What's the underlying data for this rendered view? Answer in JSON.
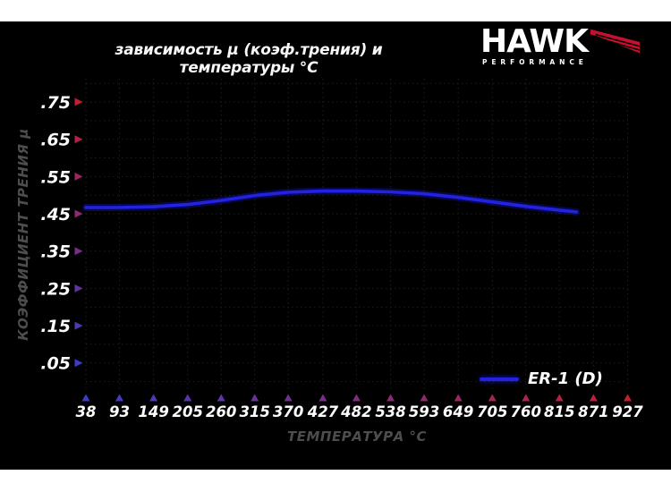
{
  "page": {
    "background": "#000000",
    "band_color": "#ffffff"
  },
  "header": {
    "title": "зависимость μ (коэф.трения) и температуры °C",
    "logo": {
      "brand": "HAWK",
      "subbrand": "PERFORMANCE",
      "wing_color": "#c8102e"
    }
  },
  "chart_data": {
    "type": "line",
    "title": "зависимость μ (коэф.трения) и температуры °C",
    "xlabel": "ТЕМПЕРАТУРА °C",
    "ylabel": "КОЭФФИЦИЕНТ ТРЕНИЯ μ",
    "x_ticks": [
      38,
      93,
      149,
      205,
      260,
      315,
      370,
      427,
      482,
      538,
      593,
      649,
      705,
      760,
      815,
      871,
      927
    ],
    "y_ticks": [
      ".05",
      ".15",
      ".25",
      ".35",
      ".45",
      ".55",
      ".65",
      ".75"
    ],
    "y_tick_values": [
      0.05,
      0.15,
      0.25,
      0.35,
      0.45,
      0.55,
      0.65,
      0.75
    ],
    "xlim": [
      38,
      927
    ],
    "ylim": [
      -0.025,
      0.8125
    ],
    "grid": "dotted",
    "legend_position": "bottom-right",
    "colors": {
      "axis_red": "#c41e33",
      "axis_blue": "#3c3cc8",
      "grid": "#1f1f1f",
      "curve": "#2222e0",
      "curve_glow": "#0e0e96"
    },
    "series": [
      {
        "name": "ER-1 (D)",
        "color": "#2222e0",
        "points": [
          [
            38,
            0.467
          ],
          [
            93,
            0.467
          ],
          [
            149,
            0.469
          ],
          [
            205,
            0.475
          ],
          [
            260,
            0.486
          ],
          [
            315,
            0.499
          ],
          [
            370,
            0.508
          ],
          [
            427,
            0.511
          ],
          [
            482,
            0.511
          ],
          [
            538,
            0.509
          ],
          [
            593,
            0.504
          ],
          [
            649,
            0.494
          ],
          [
            705,
            0.482
          ],
          [
            760,
            0.47
          ],
          [
            815,
            0.46
          ],
          [
            843,
            0.455
          ]
        ]
      }
    ]
  }
}
